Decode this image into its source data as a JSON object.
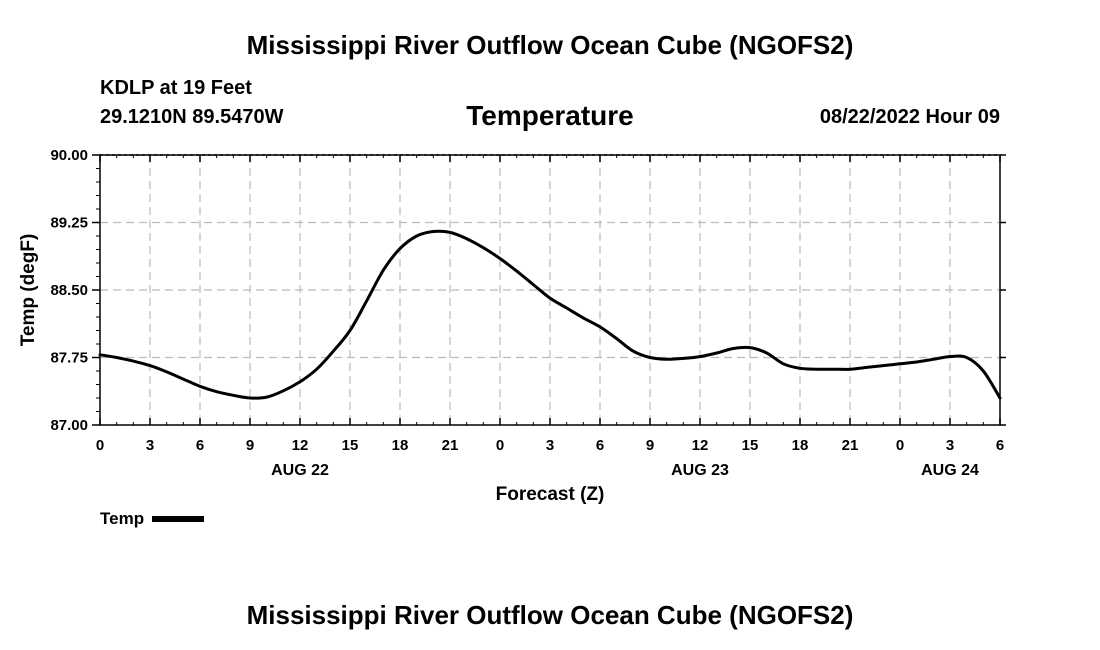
{
  "header": {
    "title": "Mississippi River Outflow Ocean Cube (NGOFS2)",
    "station": "KDLP at 19 Feet",
    "coords": "29.1210N  89.5470W",
    "datetime": "08/22/2022 Hour 09"
  },
  "footer": {
    "title": "Mississippi River Outflow Ocean Cube (NGOFS2)"
  },
  "legend": {
    "label": "Temp"
  },
  "chart_data": {
    "type": "line",
    "title": "Temperature",
    "xlabel": "Forecast (Z)",
    "ylabel": "Temp (degF)",
    "xlim": [
      0,
      54
    ],
    "ylim": [
      87.0,
      90.0
    ],
    "y_ticks": [
      "87.00",
      "87.75",
      "88.50",
      "89.25",
      "90.00"
    ],
    "y_tick_values": [
      87.0,
      87.75,
      88.5,
      89.25,
      90.0
    ],
    "x_ticks": [
      "0",
      "3",
      "6",
      "9",
      "12",
      "15",
      "18",
      "21",
      "0",
      "3",
      "6",
      "9",
      "12",
      "15",
      "18",
      "21",
      "0",
      "3",
      "6"
    ],
    "x_tick_values": [
      0,
      3,
      6,
      9,
      12,
      15,
      18,
      21,
      24,
      27,
      30,
      33,
      36,
      39,
      42,
      45,
      48,
      51,
      54
    ],
    "date_labels": [
      {
        "label": "AUG 22",
        "x": 12
      },
      {
        "label": "AUG 23",
        "x": 36
      },
      {
        "label": "AUG 24",
        "x": 51
      }
    ],
    "grid": true,
    "series": [
      {
        "name": "Temp",
        "x": [
          0,
          1,
          2,
          3,
          4,
          5,
          6,
          7,
          8,
          9,
          10,
          11,
          12,
          13,
          14,
          15,
          16,
          17,
          18,
          19,
          20,
          21,
          22,
          23,
          24,
          25,
          26,
          27,
          28,
          29,
          30,
          31,
          32,
          33,
          34,
          35,
          36,
          37,
          38,
          39,
          40,
          41,
          42,
          43,
          44,
          45,
          46,
          47,
          48,
          49,
          50,
          51,
          52,
          53,
          54
        ],
        "y": [
          87.78,
          87.75,
          87.71,
          87.66,
          87.59,
          87.51,
          87.43,
          87.37,
          87.33,
          87.3,
          87.31,
          87.38,
          87.48,
          87.62,
          87.82,
          88.05,
          88.38,
          88.72,
          88.96,
          89.1,
          89.15,
          89.14,
          89.07,
          88.97,
          88.85,
          88.71,
          88.56,
          88.41,
          88.3,
          88.19,
          88.09,
          87.96,
          87.82,
          87.75,
          87.73,
          87.74,
          87.76,
          87.8,
          87.85,
          87.86,
          87.8,
          87.68,
          87.63,
          87.62,
          87.62,
          87.62,
          87.64,
          87.66,
          87.68,
          87.7,
          87.73,
          87.76,
          87.75,
          87.6,
          87.3
        ]
      }
    ]
  }
}
